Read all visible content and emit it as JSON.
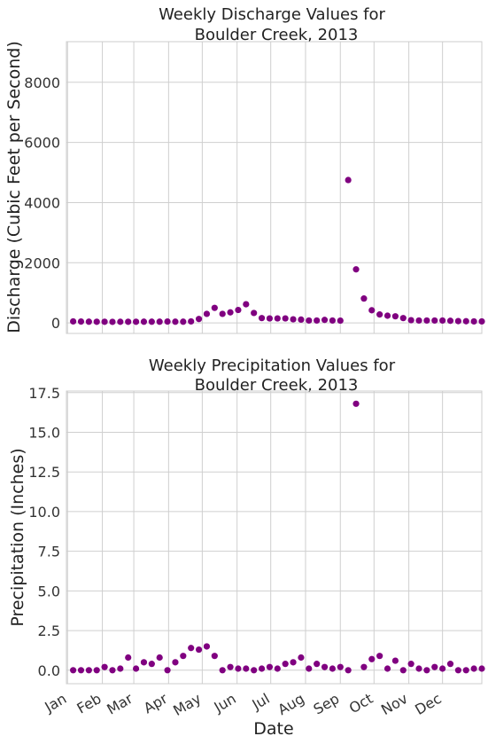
{
  "chart_data": [
    {
      "type": "scatter",
      "title_line1": "Weekly Discharge Values for",
      "title_line2": "Boulder Creek, 2013",
      "xlabel": "",
      "ylabel": "Discharge (Cubic Feet per Second)",
      "ylim": [
        -350,
        9350
      ],
      "xlim": [
        "2012-12-31",
        "2014-01-05"
      ],
      "yticks": [
        0,
        2000,
        4000,
        6000,
        8000
      ],
      "ytick_labels": [
        "0",
        "2000",
        "4000",
        "6000",
        "8000"
      ],
      "grid": true,
      "marker_color": "#800080",
      "x": [
        "2013-01-06",
        "2013-01-13",
        "2013-01-20",
        "2013-01-27",
        "2013-02-03",
        "2013-02-10",
        "2013-02-17",
        "2013-02-24",
        "2013-03-03",
        "2013-03-10",
        "2013-03-17",
        "2013-03-24",
        "2013-03-31",
        "2013-04-07",
        "2013-04-14",
        "2013-04-21",
        "2013-04-28",
        "2013-05-05",
        "2013-05-12",
        "2013-05-19",
        "2013-05-26",
        "2013-06-02",
        "2013-06-09",
        "2013-06-16",
        "2013-06-23",
        "2013-06-30",
        "2013-07-07",
        "2013-07-14",
        "2013-07-21",
        "2013-07-28",
        "2013-08-04",
        "2013-08-11",
        "2013-08-18",
        "2013-08-25",
        "2013-09-01",
        "2013-09-08",
        "2013-09-15",
        "2013-09-22",
        "2013-09-29",
        "2013-10-06",
        "2013-10-13",
        "2013-10-20",
        "2013-10-27",
        "2013-11-03",
        "2013-11-10",
        "2013-11-17",
        "2013-11-24",
        "2013-12-01",
        "2013-12-08",
        "2013-12-15",
        "2013-12-22",
        "2013-12-29",
        "2014-01-05"
      ],
      "y": [
        50,
        45,
        40,
        38,
        38,
        35,
        37,
        38,
        38,
        40,
        40,
        40,
        45,
        40,
        40,
        50,
        130,
        300,
        500,
        300,
        350,
        430,
        620,
        330,
        160,
        150,
        150,
        150,
        120,
        110,
        80,
        80,
        100,
        80,
        75,
        4750,
        1780,
        810,
        420,
        280,
        240,
        220,
        160,
        90,
        80,
        80,
        80,
        80,
        70,
        60,
        55,
        50,
        50
      ]
    },
    {
      "type": "scatter",
      "title_line1": "Weekly Precipitation Values for",
      "title_line2": "Boulder Creek, 2013",
      "xlabel": "Date",
      "ylabel": "Precipitation (Inches)",
      "ylim": [
        -0.85,
        17.6
      ],
      "xlim": [
        "2012-12-31",
        "2014-01-05"
      ],
      "yticks": [
        0.0,
        2.5,
        5.0,
        7.5,
        10.0,
        12.5,
        15.0,
        17.5
      ],
      "ytick_labels": [
        "0.0",
        "2.5",
        "5.0",
        "7.5",
        "10.0",
        "12.5",
        "15.0",
        "17.5"
      ],
      "xticks": [
        "2013-01-01",
        "2013-02-01",
        "2013-03-01",
        "2013-04-01",
        "2013-05-01",
        "2013-06-01",
        "2013-07-01",
        "2013-08-01",
        "2013-09-01",
        "2013-10-01",
        "2013-11-01",
        "2013-12-01"
      ],
      "xtick_labels": [
        "Jan",
        "Feb",
        "Mar",
        "Apr",
        "May",
        "Jun",
        "Jul",
        "Aug",
        "Sep",
        "Oct",
        "Nov",
        "Dec"
      ],
      "grid": true,
      "marker_color": "#800080",
      "x": [
        "2013-01-06",
        "2013-01-13",
        "2013-01-20",
        "2013-01-27",
        "2013-02-03",
        "2013-02-10",
        "2013-02-17",
        "2013-02-24",
        "2013-03-03",
        "2013-03-10",
        "2013-03-17",
        "2013-03-24",
        "2013-03-31",
        "2013-04-07",
        "2013-04-14",
        "2013-04-21",
        "2013-04-28",
        "2013-05-05",
        "2013-05-12",
        "2013-05-19",
        "2013-05-26",
        "2013-06-02",
        "2013-06-09",
        "2013-06-16",
        "2013-06-23",
        "2013-06-30",
        "2013-07-07",
        "2013-07-14",
        "2013-07-21",
        "2013-07-28",
        "2013-08-04",
        "2013-08-11",
        "2013-08-18",
        "2013-08-25",
        "2013-09-01",
        "2013-09-08",
        "2013-09-15",
        "2013-09-22",
        "2013-09-29",
        "2013-10-06",
        "2013-10-13",
        "2013-10-20",
        "2013-10-27",
        "2013-11-03",
        "2013-11-10",
        "2013-11-17",
        "2013-11-24",
        "2013-12-01",
        "2013-12-08",
        "2013-12-15",
        "2013-12-22",
        "2013-12-29",
        "2014-01-05"
      ],
      "y": [
        0.0,
        0.0,
        0.0,
        0.0,
        0.2,
        0.0,
        0.1,
        0.8,
        0.1,
        0.5,
        0.4,
        0.8,
        0.0,
        0.5,
        0.9,
        1.4,
        1.3,
        1.5,
        0.9,
        0.0,
        0.2,
        0.1,
        0.1,
        0.0,
        0.1,
        0.2,
        0.1,
        0.4,
        0.5,
        0.8,
        0.1,
        0.4,
        0.2,
        0.1,
        0.2,
        0.0,
        16.8,
        0.2,
        0.7,
        0.9,
        0.1,
        0.6,
        0.0,
        0.4,
        0.1,
        0.0,
        0.2,
        0.1,
        0.4,
        0.0,
        0.0,
        0.1,
        0.1
      ]
    }
  ]
}
